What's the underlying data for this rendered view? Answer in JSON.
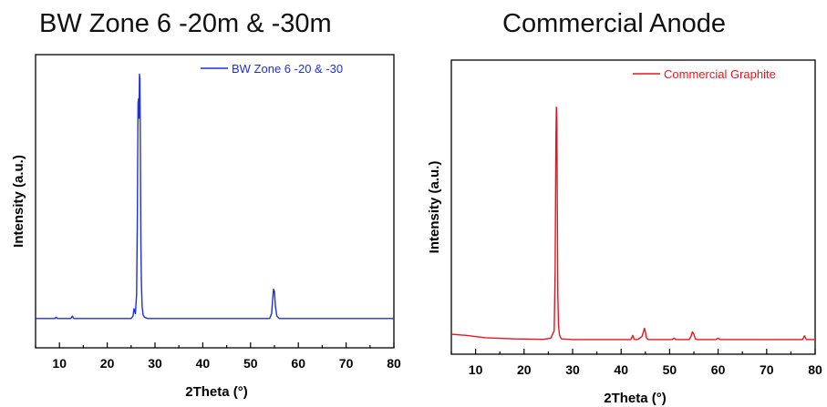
{
  "chart_data": [
    {
      "type": "line",
      "title": "BW Zone 6 -20m & -30m",
      "xlabel": "2Theta (°)",
      "ylabel": "Intensity (a.u.)",
      "xlim": [
        5,
        80
      ],
      "ylim": [
        -0.12,
        1.08
      ],
      "xticks": [
        "10",
        "20",
        "30",
        "40",
        "50",
        "60",
        "70",
        "80"
      ],
      "yticks_shown": false,
      "legend_position": "top-right",
      "grid": false,
      "color": "#1f2fe0",
      "series": [
        {
          "name": "BW Zone 6 -20 & -30",
          "x": [
            5,
            9,
            9.3,
            9.6,
            12.4,
            12.7,
            13.0,
            25.0,
            25.4,
            25.6,
            25.9,
            26.15,
            26.3,
            26.45,
            26.55,
            26.65,
            26.75,
            26.85,
            26.95,
            27.05,
            27.15,
            27.3,
            27.5,
            27.8,
            28.5,
            54.0,
            54.4,
            54.6,
            54.8,
            55.0,
            55.2,
            55.5,
            56.0,
            80
          ],
          "y": [
            0.0,
            0.0,
            0.005,
            0.0,
            0.0,
            0.01,
            0.0,
            0.0,
            0.01,
            0.04,
            0.02,
            0.1,
            0.4,
            0.88,
            0.9,
            0.82,
            1.0,
            0.98,
            0.65,
            0.3,
            0.15,
            0.05,
            0.015,
            0.005,
            0.0,
            0.0,
            0.02,
            0.07,
            0.12,
            0.11,
            0.05,
            0.01,
            0.0,
            0.0
          ]
        }
      ]
    },
    {
      "type": "line",
      "title": "Commercial Anode",
      "xlabel": "2Theta (°)",
      "ylabel": "Intensity (a.u.)",
      "xlim": [
        5,
        80
      ],
      "ylim": [
        -0.05,
        1.2
      ],
      "xticks": [
        "10",
        "20",
        "30",
        "40",
        "50",
        "60",
        "70",
        "80"
      ],
      "yticks_shown": false,
      "legend_position": "top-right",
      "grid": false,
      "color": "#e8141c",
      "series": [
        {
          "name": "Commercial Graphite",
          "x": [
            5,
            8,
            12,
            18,
            24,
            25.5,
            26.2,
            26.4,
            26.55,
            26.65,
            26.75,
            26.85,
            26.95,
            27.1,
            27.3,
            27.7,
            30,
            35,
            42.0,
            42.4,
            42.7,
            43.0,
            43.5,
            44.3,
            44.6,
            44.8,
            45.0,
            45.2,
            45.6,
            46.5,
            50.5,
            50.9,
            51.3,
            54.0,
            54.4,
            54.7,
            55.0,
            55.3,
            55.7,
            59.5,
            60.0,
            60.5,
            67,
            77.4,
            77.8,
            78.2,
            80
          ],
          "y": [
            0.035,
            0.03,
            0.02,
            0.015,
            0.013,
            0.018,
            0.05,
            0.3,
            0.85,
            1.0,
            0.95,
            0.55,
            0.2,
            0.07,
            0.03,
            0.015,
            0.012,
            0.012,
            0.012,
            0.03,
            0.013,
            0.012,
            0.013,
            0.025,
            0.045,
            0.06,
            0.045,
            0.02,
            0.012,
            0.012,
            0.012,
            0.018,
            0.012,
            0.012,
            0.025,
            0.045,
            0.035,
            0.015,
            0.012,
            0.012,
            0.018,
            0.012,
            0.012,
            0.012,
            0.028,
            0.012,
            0.012
          ]
        }
      ]
    }
  ]
}
